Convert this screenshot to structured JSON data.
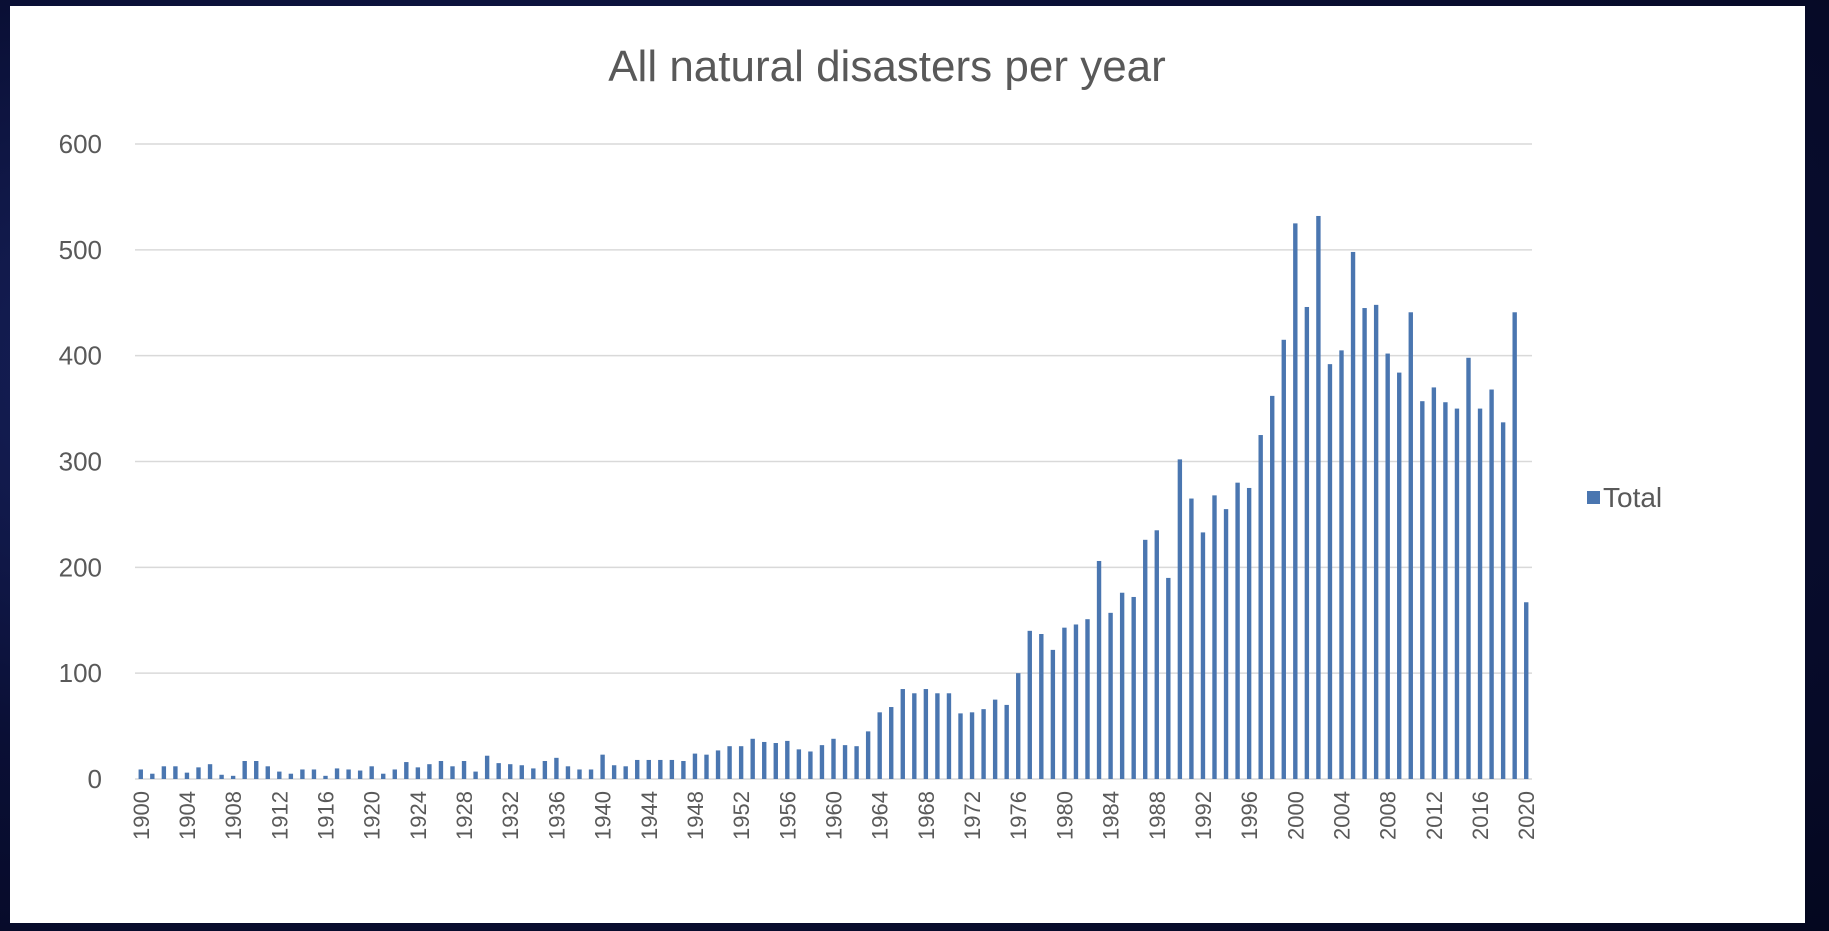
{
  "chart_data": {
    "type": "bar",
    "title": "All natural disasters per year",
    "xlabel": "",
    "ylabel": "",
    "ylim": [
      0,
      600
    ],
    "yticks": [
      "0",
      "100",
      "200",
      "300",
      "400",
      "500",
      "600"
    ],
    "xtick_labels": [
      "1900",
      "1904",
      "1908",
      "1912",
      "1916",
      "1920",
      "1924",
      "1928",
      "1932",
      "1936",
      "1940",
      "1944",
      "1948",
      "1952",
      "1956",
      "1960",
      "1964",
      "1968",
      "1972",
      "1976",
      "1980",
      "1984",
      "1988",
      "1992",
      "1996",
      "2000",
      "2004",
      "2008",
      "2012",
      "2016",
      "2020"
    ],
    "grid": true,
    "legend_position": "right",
    "bar_color": "#4a76b0",
    "series": [
      {
        "name": "Total",
        "x": [
          1900,
          1901,
          1902,
          1903,
          1904,
          1905,
          1906,
          1907,
          1908,
          1909,
          1910,
          1911,
          1912,
          1913,
          1914,
          1915,
          1916,
          1917,
          1918,
          1919,
          1920,
          1921,
          1922,
          1923,
          1924,
          1925,
          1926,
          1927,
          1928,
          1929,
          1930,
          1931,
          1932,
          1933,
          1934,
          1935,
          1936,
          1937,
          1938,
          1939,
          1940,
          1941,
          1942,
          1943,
          1944,
          1945,
          1946,
          1947,
          1948,
          1949,
          1950,
          1951,
          1952,
          1953,
          1954,
          1955,
          1956,
          1957,
          1958,
          1959,
          1960,
          1961,
          1962,
          1963,
          1964,
          1965,
          1966,
          1967,
          1968,
          1969,
          1970,
          1971,
          1972,
          1973,
          1974,
          1975,
          1976,
          1977,
          1978,
          1979,
          1980,
          1981,
          1982,
          1983,
          1984,
          1985,
          1986,
          1987,
          1988,
          1989,
          1990,
          1991,
          1992,
          1993,
          1994,
          1995,
          1996,
          1997,
          1998,
          1999,
          2000,
          2001,
          2002,
          2003,
          2004,
          2005,
          2006,
          2007,
          2008,
          2009,
          2010,
          2011,
          2012,
          2013,
          2014,
          2015,
          2016,
          2017,
          2018,
          2019,
          2020
        ],
        "values": [
          9,
          5,
          12,
          12,
          6,
          11,
          14,
          4,
          3,
          17,
          17,
          12,
          7,
          5,
          9,
          9,
          3,
          10,
          9,
          8,
          12,
          5,
          9,
          16,
          11,
          14,
          17,
          12,
          17,
          7,
          22,
          15,
          14,
          13,
          10,
          17,
          20,
          12,
          9,
          9,
          23,
          13,
          12,
          18,
          18,
          18,
          18,
          17,
          24,
          23,
          27,
          31,
          31,
          38,
          35,
          34,
          36,
          28,
          26,
          32,
          38,
          32,
          31,
          45,
          63,
          68,
          85,
          81,
          85,
          81,
          81,
          62,
          63,
          66,
          75,
          70,
          100,
          140,
          137,
          122,
          143,
          146,
          151,
          206,
          157,
          176,
          172,
          226,
          235,
          190,
          302,
          265,
          233,
          268,
          255,
          280,
          275,
          325,
          362,
          415,
          525,
          446,
          532,
          392,
          405,
          498,
          445,
          448,
          402,
          384,
          441,
          357,
          370,
          356,
          350,
          398,
          350,
          368,
          337,
          441,
          167
        ]
      }
    ]
  }
}
